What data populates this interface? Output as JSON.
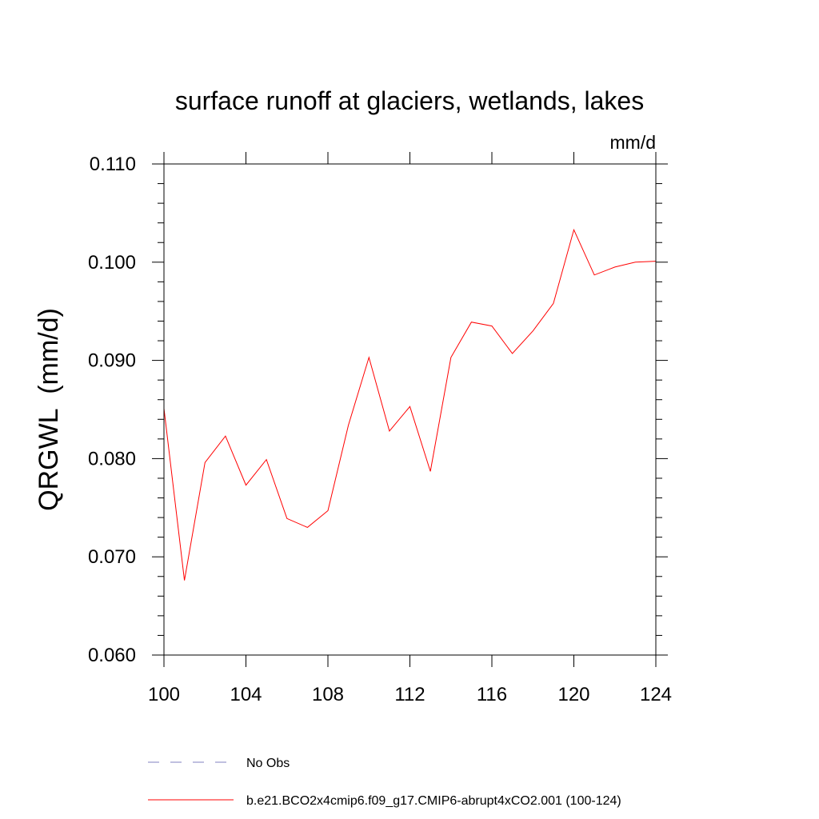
{
  "chart_data": {
    "type": "line",
    "title": "surface runoff at glaciers, wetlands, lakes",
    "units_label": "mm/d",
    "ylabel": "QRGWL  (mm/d)",
    "xlabel": "",
    "xlim": [
      100,
      124
    ],
    "ylim": [
      0.06,
      0.11
    ],
    "x_ticks": [
      100,
      104,
      108,
      112,
      116,
      120,
      124
    ],
    "x_tick_labels": [
      "100",
      "104",
      "108",
      "112",
      "116",
      "120",
      "124"
    ],
    "y_ticks": [
      0.06,
      0.07,
      0.08,
      0.09,
      0.1,
      0.11
    ],
    "y_tick_labels": [
      "0.060",
      "0.070",
      "0.080",
      "0.090",
      "0.100",
      "0.110"
    ],
    "grid": false,
    "legend_position": "bottom",
    "series": [
      {
        "name": "b.e21.BCO2x4cmip6.f09_g17.CMIP6-abrupt4xCO2.001 (100-124)",
        "color": "#ff0000",
        "style": "solid",
        "x": [
          100,
          101,
          102,
          103,
          104,
          105,
          106,
          107,
          108,
          109,
          110,
          111,
          112,
          113,
          114,
          115,
          116,
          117,
          118,
          119,
          120,
          121,
          122,
          123,
          124
        ],
        "y": [
          0.0851,
          0.0676,
          0.0796,
          0.0823,
          0.0773,
          0.0799,
          0.0739,
          0.073,
          0.0747,
          0.0834,
          0.0903,
          0.0828,
          0.0853,
          0.0787,
          0.0903,
          0.0939,
          0.0935,
          0.0907,
          0.093,
          0.0958,
          0.1033,
          0.0987,
          0.0995,
          0.1,
          0.1001
        ]
      }
    ],
    "legend": [
      {
        "label": "No Obs",
        "color": "#8080c0",
        "style": "dashed"
      },
      {
        "label": "b.e21.BCO2x4cmip6.f09_g17.CMIP6-abrupt4xCO2.001 (100-124)",
        "color": "#ff0000",
        "style": "solid"
      }
    ]
  }
}
